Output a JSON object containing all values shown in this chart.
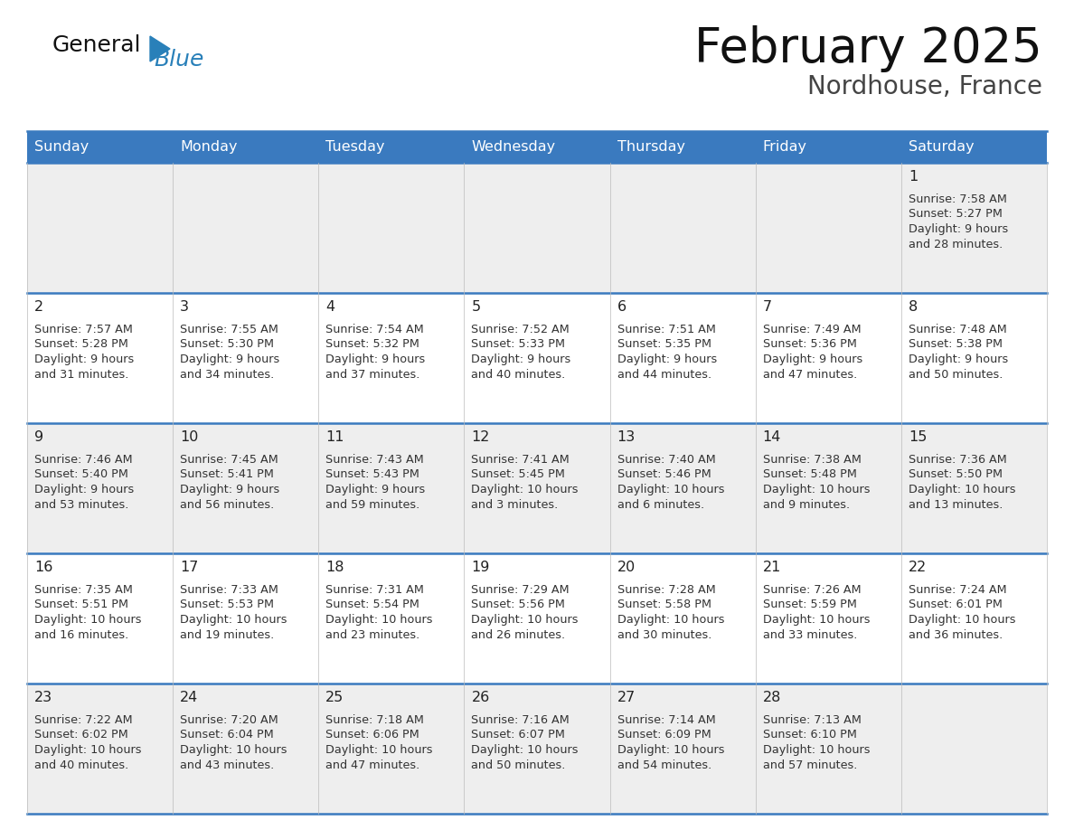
{
  "title": "February 2025",
  "subtitle": "Nordhouse, France",
  "header_color": "#3a7abf",
  "header_text_color": "#ffffff",
  "cell_bg_row0": "#eeeeee",
  "cell_bg_row1": "#ffffff",
  "cell_bg_row2": "#eeeeee",
  "cell_bg_row3": "#ffffff",
  "cell_bg_row4": "#eeeeee",
  "text_color": "#333333",
  "line_color": "#3a7abf",
  "days_of_week": [
    "Sunday",
    "Monday",
    "Tuesday",
    "Wednesday",
    "Thursday",
    "Friday",
    "Saturday"
  ],
  "calendar": [
    [
      {
        "day": "",
        "sunrise": "",
        "sunset": "",
        "daylight": ""
      },
      {
        "day": "",
        "sunrise": "",
        "sunset": "",
        "daylight": ""
      },
      {
        "day": "",
        "sunrise": "",
        "sunset": "",
        "daylight": ""
      },
      {
        "day": "",
        "sunrise": "",
        "sunset": "",
        "daylight": ""
      },
      {
        "day": "",
        "sunrise": "",
        "sunset": "",
        "daylight": ""
      },
      {
        "day": "",
        "sunrise": "",
        "sunset": "",
        "daylight": ""
      },
      {
        "day": "1",
        "sunrise": "7:58 AM",
        "sunset": "5:27 PM",
        "daylight": "9 hours\nand 28 minutes."
      }
    ],
    [
      {
        "day": "2",
        "sunrise": "7:57 AM",
        "sunset": "5:28 PM",
        "daylight": "9 hours\nand 31 minutes."
      },
      {
        "day": "3",
        "sunrise": "7:55 AM",
        "sunset": "5:30 PM",
        "daylight": "9 hours\nand 34 minutes."
      },
      {
        "day": "4",
        "sunrise": "7:54 AM",
        "sunset": "5:32 PM",
        "daylight": "9 hours\nand 37 minutes."
      },
      {
        "day": "5",
        "sunrise": "7:52 AM",
        "sunset": "5:33 PM",
        "daylight": "9 hours\nand 40 minutes."
      },
      {
        "day": "6",
        "sunrise": "7:51 AM",
        "sunset": "5:35 PM",
        "daylight": "9 hours\nand 44 minutes."
      },
      {
        "day": "7",
        "sunrise": "7:49 AM",
        "sunset": "5:36 PM",
        "daylight": "9 hours\nand 47 minutes."
      },
      {
        "day": "8",
        "sunrise": "7:48 AM",
        "sunset": "5:38 PM",
        "daylight": "9 hours\nand 50 minutes."
      }
    ],
    [
      {
        "day": "9",
        "sunrise": "7:46 AM",
        "sunset": "5:40 PM",
        "daylight": "9 hours\nand 53 minutes."
      },
      {
        "day": "10",
        "sunrise": "7:45 AM",
        "sunset": "5:41 PM",
        "daylight": "9 hours\nand 56 minutes."
      },
      {
        "day": "11",
        "sunrise": "7:43 AM",
        "sunset": "5:43 PM",
        "daylight": "9 hours\nand 59 minutes."
      },
      {
        "day": "12",
        "sunrise": "7:41 AM",
        "sunset": "5:45 PM",
        "daylight": "10 hours\nand 3 minutes."
      },
      {
        "day": "13",
        "sunrise": "7:40 AM",
        "sunset": "5:46 PM",
        "daylight": "10 hours\nand 6 minutes."
      },
      {
        "day": "14",
        "sunrise": "7:38 AM",
        "sunset": "5:48 PM",
        "daylight": "10 hours\nand 9 minutes."
      },
      {
        "day": "15",
        "sunrise": "7:36 AM",
        "sunset": "5:50 PM",
        "daylight": "10 hours\nand 13 minutes."
      }
    ],
    [
      {
        "day": "16",
        "sunrise": "7:35 AM",
        "sunset": "5:51 PM",
        "daylight": "10 hours\nand 16 minutes."
      },
      {
        "day": "17",
        "sunrise": "7:33 AM",
        "sunset": "5:53 PM",
        "daylight": "10 hours\nand 19 minutes."
      },
      {
        "day": "18",
        "sunrise": "7:31 AM",
        "sunset": "5:54 PM",
        "daylight": "10 hours\nand 23 minutes."
      },
      {
        "day": "19",
        "sunrise": "7:29 AM",
        "sunset": "5:56 PM",
        "daylight": "10 hours\nand 26 minutes."
      },
      {
        "day": "20",
        "sunrise": "7:28 AM",
        "sunset": "5:58 PM",
        "daylight": "10 hours\nand 30 minutes."
      },
      {
        "day": "21",
        "sunrise": "7:26 AM",
        "sunset": "5:59 PM",
        "daylight": "10 hours\nand 33 minutes."
      },
      {
        "day": "22",
        "sunrise": "7:24 AM",
        "sunset": "6:01 PM",
        "daylight": "10 hours\nand 36 minutes."
      }
    ],
    [
      {
        "day": "23",
        "sunrise": "7:22 AM",
        "sunset": "6:02 PM",
        "daylight": "10 hours\nand 40 minutes."
      },
      {
        "day": "24",
        "sunrise": "7:20 AM",
        "sunset": "6:04 PM",
        "daylight": "10 hours\nand 43 minutes."
      },
      {
        "day": "25",
        "sunrise": "7:18 AM",
        "sunset": "6:06 PM",
        "daylight": "10 hours\nand 47 minutes."
      },
      {
        "day": "26",
        "sunrise": "7:16 AM",
        "sunset": "6:07 PM",
        "daylight": "10 hours\nand 50 minutes."
      },
      {
        "day": "27",
        "sunrise": "7:14 AM",
        "sunset": "6:09 PM",
        "daylight": "10 hours\nand 54 minutes."
      },
      {
        "day": "28",
        "sunrise": "7:13 AM",
        "sunset": "6:10 PM",
        "daylight": "10 hours\nand 57 minutes."
      },
      {
        "day": "",
        "sunrise": "",
        "sunset": "",
        "daylight": ""
      }
    ]
  ]
}
